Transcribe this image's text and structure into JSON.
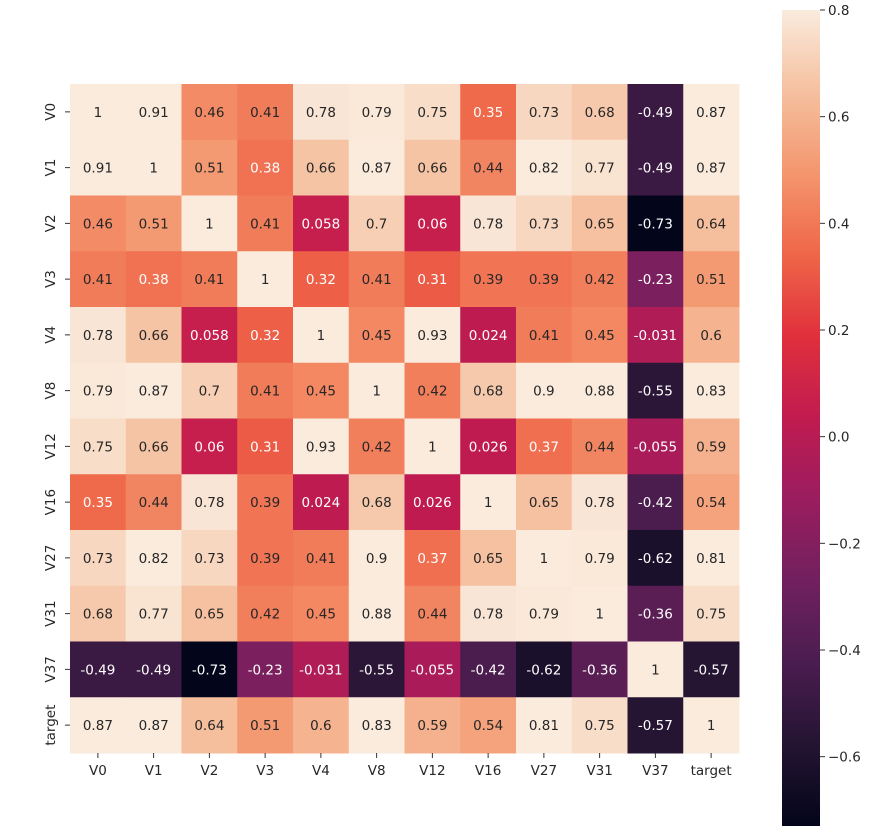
{
  "chart_data": {
    "type": "heatmap",
    "title": "",
    "xlabel": "",
    "ylabel": "",
    "row_labels": [
      "V0",
      "V1",
      "V2",
      "V3",
      "V4",
      "V8",
      "V12",
      "V16",
      "V27",
      "V31",
      "V37",
      "target"
    ],
    "col_labels": [
      "V0",
      "V1",
      "V2",
      "V3",
      "V4",
      "V8",
      "V12",
      "V16",
      "V27",
      "V31",
      "V37",
      "target"
    ],
    "cell_labels": [
      [
        "1",
        "0.91",
        "0.46",
        "0.41",
        "0.78",
        "0.79",
        "0.75",
        "0.35",
        "0.73",
        "0.68",
        "-0.49",
        "0.87"
      ],
      [
        "0.91",
        "1",
        "0.51",
        "0.38",
        "0.66",
        "0.87",
        "0.66",
        "0.44",
        "0.82",
        "0.77",
        "-0.49",
        "0.87"
      ],
      [
        "0.46",
        "0.51",
        "1",
        "0.41",
        "0.058",
        "0.7",
        "0.06",
        "0.78",
        "0.73",
        "0.65",
        "-0.73",
        "0.64"
      ],
      [
        "0.41",
        "0.38",
        "0.41",
        "1",
        "0.32",
        "0.41",
        "0.31",
        "0.39",
        "0.39",
        "0.42",
        "-0.23",
        "0.51"
      ],
      [
        "0.78",
        "0.66",
        "0.058",
        "0.32",
        "1",
        "0.45",
        "0.93",
        "0.024",
        "0.41",
        "0.45",
        "-0.031",
        "0.6"
      ],
      [
        "0.79",
        "0.87",
        "0.7",
        "0.41",
        "0.45",
        "1",
        "0.42",
        "0.68",
        "0.9",
        "0.88",
        "-0.55",
        "0.83"
      ],
      [
        "0.75",
        "0.66",
        "0.06",
        "0.31",
        "0.93",
        "0.42",
        "1",
        "0.026",
        "0.37",
        "0.44",
        "-0.055",
        "0.59"
      ],
      [
        "0.35",
        "0.44",
        "0.78",
        "0.39",
        "0.024",
        "0.68",
        "0.026",
        "1",
        "0.65",
        "0.78",
        "-0.42",
        "0.54"
      ],
      [
        "0.73",
        "0.82",
        "0.73",
        "0.39",
        "0.41",
        "0.9",
        "0.37",
        "0.65",
        "1",
        "0.79",
        "-0.62",
        "0.81"
      ],
      [
        "0.68",
        "0.77",
        "0.65",
        "0.42",
        "0.45",
        "0.88",
        "0.44",
        "0.78",
        "0.79",
        "1",
        "-0.36",
        "0.75"
      ],
      [
        "-0.49",
        "-0.49",
        "-0.73",
        "-0.23",
        "-0.031",
        "-0.55",
        "-0.055",
        "-0.42",
        "-0.62",
        "-0.36",
        "1",
        "-0.57"
      ],
      [
        "0.87",
        "0.87",
        "0.64",
        "0.51",
        "0.6",
        "0.83",
        "0.59",
        "0.54",
        "0.81",
        "0.75",
        "-0.57",
        "1"
      ]
    ],
    "colorbar": {
      "vmin": -0.73,
      "vmax": 0.8,
      "ticks": [
        0.8,
        0.6,
        0.4,
        0.2,
        0.0,
        -0.2,
        -0.4,
        -0.6
      ],
      "tick_labels": [
        "0.8",
        "0.6",
        "0.4",
        "0.2",
        "0.0",
        "−0.2",
        "−0.4",
        "−0.6"
      ]
    },
    "colormap": "rocket",
    "grid": false,
    "legend": "colorbar-right"
  }
}
